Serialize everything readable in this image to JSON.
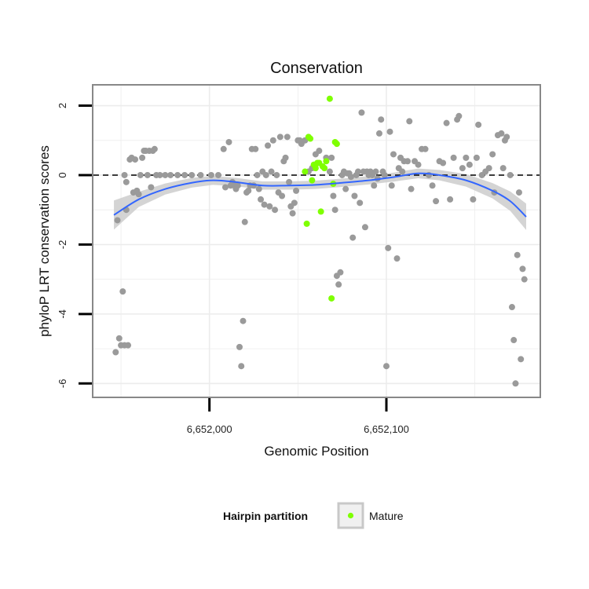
{
  "chart_data": {
    "type": "scatter",
    "title": "Conservation",
    "xlabel": "Genomic Position",
    "ylabel": "phyloP LRT conservation scores",
    "xlim": [
      6651934,
      6652187
    ],
    "ylim": [
      -6.4,
      2.6
    ],
    "x_ticks": [
      6652000,
      6652100
    ],
    "x_tick_labels": [
      "6,652,000",
      "6,652,100"
    ],
    "y_ticks": [
      -6,
      -4,
      -2,
      0,
      2
    ],
    "y_tick_labels": [
      "-6",
      "-4",
      "-2",
      "0",
      "2"
    ],
    "reference_line": {
      "y": 0,
      "style": "dashed"
    },
    "grid": true,
    "legend": {
      "title": "Hairpin partition",
      "position": "bottom",
      "entries": [
        "Mature"
      ]
    },
    "colors": {
      "gray_points": "#9a9a9a",
      "mature_points": "#7fff00",
      "smooth_line": "#3366ff",
      "confidence_band": "#cccccc"
    },
    "series": [
      {
        "name": "",
        "color": "#9a9a9a",
        "points": [
          [
            6651947,
            -5.1
          ],
          [
            6651948,
            -1.3
          ],
          [
            6651949,
            -4.7
          ],
          [
            6651950,
            -4.9
          ],
          [
            6651951,
            -3.35
          ],
          [
            6651952,
            -4.9
          ],
          [
            6651953,
            -0.2
          ],
          [
            6651952,
            0
          ],
          [
            6651953,
            -1.0
          ],
          [
            6651954,
            -4.9
          ],
          [
            6651955,
            0.45
          ],
          [
            6651956,
            0.5
          ],
          [
            6651957,
            -0.5
          ],
          [
            6651958,
            0.45
          ],
          [
            6651959,
            -0.45
          ],
          [
            6651960,
            -0.55
          ],
          [
            6651961,
            0.0
          ],
          [
            6651962,
            0.5
          ],
          [
            6651963,
            0.7
          ],
          [
            6651964,
            0.7
          ],
          [
            6651965,
            0.0
          ],
          [
            6651966,
            0.7
          ],
          [
            6651967,
            -0.35
          ],
          [
            6651968,
            0.7
          ],
          [
            6651969,
            0.75
          ],
          [
            6651970,
            0.0
          ],
          [
            6651972,
            0.0
          ],
          [
            6651975,
            0.0
          ],
          [
            6651978,
            0.0
          ],
          [
            6651982,
            0.0
          ],
          [
            6651986,
            0.0
          ],
          [
            6651990,
            0.0
          ],
          [
            6651995,
            0.0
          ],
          [
            6652001,
            0.0
          ],
          [
            6652005,
            0.0
          ],
          [
            6652008,
            0.75
          ],
          [
            6652009,
            -0.35
          ],
          [
            6652011,
            0.95
          ],
          [
            6652012,
            -0.3
          ],
          [
            6652013,
            -0.2
          ],
          [
            6652014,
            -0.3
          ],
          [
            6652015,
            -0.4
          ],
          [
            6652016,
            -0.3
          ],
          [
            6652017,
            -4.95
          ],
          [
            6652018,
            -5.5
          ],
          [
            6652019,
            -4.2
          ],
          [
            6652020,
            -1.35
          ],
          [
            6652021,
            -0.5
          ],
          [
            6652022,
            -0.45
          ],
          [
            6652023,
            -0.3
          ],
          [
            6652024,
            0.75
          ],
          [
            6652025,
            -0.3
          ],
          [
            6652026,
            0.75
          ],
          [
            6652027,
            0.0
          ],
          [
            6652028,
            -0.4
          ],
          [
            6652029,
            -0.7
          ],
          [
            6652030,
            0.1
          ],
          [
            6652031,
            -0.85
          ],
          [
            6652032,
            0.0
          ],
          [
            6652033,
            0.85
          ],
          [
            6652034,
            -0.9
          ],
          [
            6652035,
            0.1
          ],
          [
            6652036,
            1.0
          ],
          [
            6652037,
            -1.0
          ],
          [
            6652038,
            0.0
          ],
          [
            6652039,
            -0.5
          ],
          [
            6652040,
            1.1
          ],
          [
            6652041,
            -0.6
          ],
          [
            6652042,
            0.4
          ],
          [
            6652043,
            0.5
          ],
          [
            6652044,
            1.1
          ],
          [
            6652045,
            -0.2
          ],
          [
            6652046,
            -0.9
          ],
          [
            6652047,
            -1.1
          ],
          [
            6652048,
            -0.8
          ],
          [
            6652049,
            -0.45
          ],
          [
            6652050,
            1.0
          ],
          [
            6652051,
            1.0
          ],
          [
            6652052,
            0.9
          ],
          [
            6652054,
            1.0
          ],
          [
            6652056,
            0.1
          ],
          [
            6652058,
            0.2
          ],
          [
            6652060,
            0.6
          ],
          [
            6652062,
            0.7
          ],
          [
            6652066,
            0.5
          ],
          [
            6652068,
            0.1
          ],
          [
            6652069,
            0.5
          ],
          [
            6652070,
            -0.6
          ],
          [
            6652071,
            -1.0
          ],
          [
            6652072,
            -2.9
          ],
          [
            6652073,
            -3.15
          ],
          [
            6652074,
            -2.8
          ],
          [
            6652075,
            0.0
          ],
          [
            6652076,
            0.1
          ],
          [
            6652077,
            -0.4
          ],
          [
            6652078,
            0.05
          ],
          [
            6652079,
            0.05
          ],
          [
            6652080,
            -0.05
          ],
          [
            6652081,
            -1.8
          ],
          [
            6652082,
            -0.6
          ],
          [
            6652083,
            0.0
          ],
          [
            6652084,
            0.1
          ],
          [
            6652085,
            -0.8
          ],
          [
            6652086,
            1.8
          ],
          [
            6652087,
            0.1
          ],
          [
            6652088,
            -1.5
          ],
          [
            6652089,
            0.1
          ],
          [
            6652090,
            0.0
          ],
          [
            6652091,
            0.1
          ],
          [
            6652092,
            0.0
          ],
          [
            6652093,
            -0.3
          ],
          [
            6652094,
            0.1
          ],
          [
            6652095,
            -0.1
          ],
          [
            6652096,
            1.2
          ],
          [
            6652097,
            1.6
          ],
          [
            6652098,
            0.1
          ],
          [
            6652099,
            0.0
          ],
          [
            6652100,
            -5.5
          ],
          [
            6652101,
            -2.1
          ],
          [
            6652102,
            1.25
          ],
          [
            6652103,
            -0.3
          ],
          [
            6652104,
            0.6
          ],
          [
            6652106,
            -2.4
          ],
          [
            6652107,
            0.2
          ],
          [
            6652108,
            0.5
          ],
          [
            6652109,
            0.1
          ],
          [
            6652110,
            0.4
          ],
          [
            6652112,
            0.4
          ],
          [
            6652113,
            1.55
          ],
          [
            6652114,
            -0.4
          ],
          [
            6652116,
            0.4
          ],
          [
            6652118,
            0.3
          ],
          [
            6652120,
            0.75
          ],
          [
            6652122,
            0.75
          ],
          [
            6652124,
            0.0
          ],
          [
            6652126,
            -0.3
          ],
          [
            6652128,
            -0.75
          ],
          [
            6652130,
            0.4
          ],
          [
            6652132,
            0.35
          ],
          [
            6652134,
            1.5
          ],
          [
            6652136,
            -0.7
          ],
          [
            6652138,
            0.5
          ],
          [
            6652140,
            1.6
          ],
          [
            6652141,
            1.7
          ],
          [
            6652143,
            0.2
          ],
          [
            6652145,
            0.5
          ],
          [
            6652147,
            0.3
          ],
          [
            6652149,
            -0.7
          ],
          [
            6652151,
            0.5
          ],
          [
            6652152,
            1.45
          ],
          [
            6652154,
            0.0
          ],
          [
            6652156,
            0.1
          ],
          [
            6652158,
            0.2
          ],
          [
            6652160,
            0.6
          ],
          [
            6652161,
            -0.5
          ],
          [
            6652163,
            1.15
          ],
          [
            6652165,
            1.2
          ],
          [
            6652166,
            0.2
          ],
          [
            6652167,
            1.0
          ],
          [
            6652168,
            1.1
          ],
          [
            6652170,
            0.0
          ],
          [
            6652171,
            -3.8
          ],
          [
            6652172,
            -4.75
          ],
          [
            6652173,
            -6.0
          ],
          [
            6652174,
            -2.3
          ],
          [
            6652175,
            -0.5
          ],
          [
            6652176,
            -5.3
          ],
          [
            6652177,
            -2.7
          ],
          [
            6652178,
            -3.0
          ]
        ]
      },
      {
        "name": "Mature",
        "color": "#7fff00",
        "points": [
          [
            6652054,
            0.1
          ],
          [
            6652055,
            -1.4
          ],
          [
            6652056,
            1.1
          ],
          [
            6652057,
            1.05
          ],
          [
            6652058,
            -0.15
          ],
          [
            6652059,
            0.3
          ],
          [
            6652060,
            0.2
          ],
          [
            6652061,
            0.35
          ],
          [
            6652062,
            0.35
          ],
          [
            6652063,
            -1.05
          ],
          [
            6652064,
            0.25
          ],
          [
            6652065,
            0.2
          ],
          [
            6652066,
            0.4
          ],
          [
            6652068,
            2.2
          ],
          [
            6652069,
            -3.55
          ],
          [
            6652070,
            -0.25
          ],
          [
            6652071,
            0.95
          ],
          [
            6652072,
            0.9
          ]
        ]
      }
    ],
    "smooth": {
      "x": [
        6651946,
        6651960,
        6651975,
        6651990,
        6652002,
        6652015,
        6652030,
        6652045,
        6652060,
        6652075,
        6652090,
        6652105,
        6652118,
        6652130,
        6652145,
        6652160,
        6652170,
        6652179
      ],
      "y": [
        -1.15,
        -0.7,
        -0.4,
        -0.22,
        -0.15,
        -0.2,
        -0.3,
        -0.3,
        -0.28,
        -0.22,
        -0.15,
        -0.05,
        0.05,
        0.0,
        -0.15,
        -0.45,
        -0.75,
        -1.2
      ],
      "band_halfwidth": [
        0.42,
        0.22,
        0.16,
        0.14,
        0.13,
        0.12,
        0.12,
        0.12,
        0.12,
        0.12,
        0.12,
        0.13,
        0.14,
        0.15,
        0.18,
        0.22,
        0.28,
        0.38
      ]
    }
  }
}
